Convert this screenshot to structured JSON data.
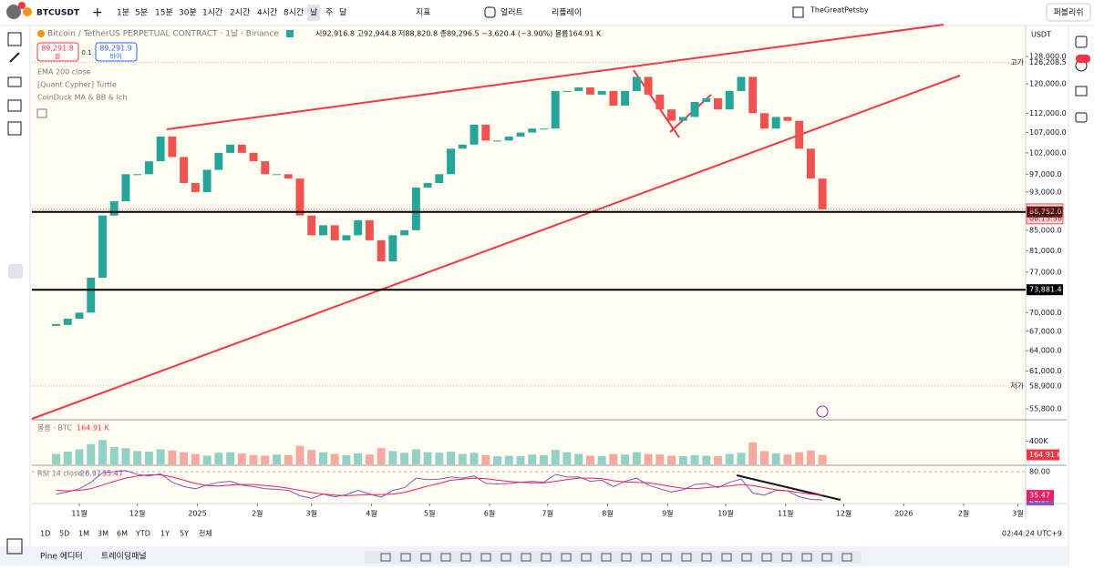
{
  "toolbar": {
    "symbol": "BTCUSDT",
    "intervals": [
      "1분",
      "5분",
      "15분",
      "30분",
      "1시간",
      "2시간",
      "4시간",
      "8시간",
      "날",
      "주",
      "달"
    ],
    "indicators": "지표",
    "alert": "얼러트",
    "replay": "리플레이",
    "user": "TheGreatPetsby",
    "publish": "퍼블리쉬"
  },
  "legend": {
    "symbol_line": "Bitcoin / TetherUS PERPETUAL CONTRACT · 1날 · Binance",
    "ohlc": "시92,916.8 고92,944.8 저88,820.8 종89,296.5 −3,620.4 (−3.90%) 볼륨164.91 K",
    "sell_price": "89,291.8",
    "sell": "셀",
    "spread": "0.1",
    "buy_price": "89,291.9",
    "buy": "바이",
    "indicators": [
      "EMA 200 close",
      "[Quant Cypher] Turtle",
      "CoinDuck MA & BB & Ich"
    ]
  },
  "chart_data": [
    {
      "type": "candlestick",
      "currency": "USDT",
      "log_scale": true,
      "x": [
        -12,
        -6,
        0,
        6,
        12,
        18,
        24,
        30,
        36,
        42,
        48,
        54,
        60,
        66,
        72,
        78,
        84,
        90,
        96,
        102,
        108,
        114,
        120,
        126,
        132,
        138,
        144,
        150,
        156,
        162,
        168,
        174,
        180,
        186,
        192,
        198,
        204,
        210,
        216,
        222,
        228,
        234,
        240,
        246,
        252,
        258,
        264,
        270,
        276,
        282,
        288,
        294,
        300,
        306,
        312,
        318,
        324,
        330,
        336,
        342,
        348,
        354,
        360,
        366,
        372,
        378,
        384
      ],
      "close": [
        68000,
        69000,
        70000,
        76000,
        88000,
        91000,
        97000,
        97000,
        100000,
        106000,
        101000,
        95000,
        93000,
        98000,
        102000,
        104000,
        102000,
        100000,
        97000,
        97000,
        96000,
        88000,
        84000,
        86000,
        83000,
        84000,
        87000,
        83000,
        79000,
        84000,
        85000,
        94000,
        95000,
        97000,
        103000,
        104000,
        109000,
        105000,
        105000,
        106000,
        107000,
        108000,
        108000,
        118000,
        118000,
        119000,
        117000,
        118000,
        114000,
        118000,
        122000,
        117000,
        113000,
        110000,
        111000,
        115000,
        116000,
        113000,
        118000,
        122000,
        112000,
        108000,
        111000,
        110000,
        103000,
        96000,
        89296.5
      ],
      "up_color": "#26a69a",
      "down_color": "#ef5350",
      "xlim": [
        -24.5,
        489
      ],
      "xticks": [
        {
          "value": 0,
          "label": "11월"
        },
        {
          "value": 30,
          "label": "12월"
        },
        {
          "value": 61,
          "label": "2025"
        },
        {
          "value": 92,
          "label": "2월"
        },
        {
          "value": 120,
          "label": "3월"
        },
        {
          "value": 151,
          "label": "4월"
        },
        {
          "value": 181,
          "label": "5월"
        },
        {
          "value": 212,
          "label": "6월"
        },
        {
          "value": 242,
          "label": "7월"
        },
        {
          "value": 273,
          "label": "8월"
        },
        {
          "value": 304,
          "label": "9월"
        },
        {
          "value": 334,
          "label": "10월"
        },
        {
          "value": 365,
          "label": "11월"
        },
        {
          "value": 395,
          "label": "12월"
        },
        {
          "value": 426,
          "label": "2026"
        },
        {
          "value": 457,
          "label": "2월"
        },
        {
          "value": 485,
          "label": "3월"
        }
      ],
      "ylim": [
        54500,
        137700
      ],
      "yticks": [
        {
          "value": 128000,
          "label": "128,000.0"
        },
        {
          "value": 120000,
          "label": "120,000.0"
        },
        {
          "value": 112000,
          "label": "112,000.0"
        },
        {
          "value": 107000,
          "label": "107,000.0"
        },
        {
          "value": 102000,
          "label": "102,000.0"
        },
        {
          "value": 97000,
          "label": "97,000.0"
        },
        {
          "value": 93000,
          "label": "93,000.0"
        },
        {
          "value": 85000,
          "label": "85,000.0"
        },
        {
          "value": 81000,
          "label": "81,000.0"
        },
        {
          "value": 77000,
          "label": "77,000.0"
        },
        {
          "value": 70000,
          "label": "70,000.0"
        },
        {
          "value": 67000,
          "label": "67,000.0"
        },
        {
          "value": 64000,
          "label": "64,000.0"
        },
        {
          "value": 61000,
          "label": "61,000.0"
        },
        {
          "value": 55800,
          "label": "55,800.0"
        }
      ],
      "price_lines": [
        {
          "value": 88752,
          "label": "88,752.0"
        },
        {
          "value": 73881.4,
          "label": "73,881.4"
        }
      ],
      "high": {
        "label": "고가",
        "value": 126208.5,
        "value_label": "126,208.5"
      },
      "low": {
        "label": "저가",
        "value": 58900,
        "value_label": "58,900.0"
      },
      "last": {
        "value": 89296.5,
        "value_label": "89,296.5",
        "countdown": "06:15:36"
      }
    },
    {
      "type": "bar",
      "title": "볼륨 · BTC",
      "last_label": "164.91 K",
      "values": [
        180000,
        220000,
        260000,
        350000,
        420000,
        300000,
        280000,
        230000,
        220000,
        260000,
        240000,
        210000,
        180000,
        150000,
        200000,
        210000,
        190000,
        160000,
        150000,
        170000,
        160000,
        320000,
        250000,
        210000,
        180000,
        160000,
        190000,
        170000,
        280000,
        230000,
        200000,
        260000,
        210000,
        200000,
        220000,
        180000,
        200000,
        160000,
        140000,
        150000,
        140000,
        170000,
        160000,
        250000,
        210000,
        180000,
        150000,
        140000,
        180000,
        170000,
        210000,
        180000,
        170000,
        150000,
        140000,
        160000,
        150000,
        140000,
        180000,
        200000,
        380000,
        230000,
        190000,
        170000,
        210000,
        240000,
        164910
      ],
      "ylim": [
        0,
        740000
      ],
      "yticks": [
        {
          "value": 400000,
          "label": "400K"
        }
      ]
    },
    {
      "type": "line",
      "title": "RSI 14 close",
      "last_labels": [
        "26.97",
        "35.47"
      ],
      "series": [
        {
          "color": "#7e57c2",
          "values": [
            38,
            42,
            48,
            60,
            78,
            80,
            82,
            75,
            72,
            76,
            60,
            52,
            48,
            55,
            60,
            62,
            55,
            52,
            48,
            47,
            45,
            35,
            30,
            38,
            33,
            37,
            45,
            38,
            32,
            45,
            50,
            68,
            65,
            66,
            70,
            68,
            72,
            58,
            57,
            58,
            60,
            62,
            60,
            75,
            70,
            70,
            62,
            64,
            52,
            62,
            68,
            55,
            48,
            42,
            46,
            56,
            58,
            50,
            60,
            66,
            40,
            36,
            45,
            44,
            33,
            28,
            26.97
          ]
        },
        {
          "color": "#e91e63",
          "values": [
            45,
            44,
            45,
            48,
            55,
            62,
            68,
            72,
            74,
            74,
            70,
            64,
            58,
            54,
            53,
            55,
            56,
            56,
            54,
            52,
            49,
            45,
            41,
            38,
            36,
            35,
            36,
            37,
            37,
            38,
            41,
            47,
            53,
            58,
            64,
            66,
            68,
            67,
            64,
            62,
            60,
            59,
            59,
            62,
            65,
            68,
            68,
            67,
            63,
            61,
            60,
            59,
            56,
            52,
            49,
            48,
            50,
            52,
            53,
            56,
            54,
            50,
            46,
            44,
            41,
            38,
            35.47
          ]
        }
      ],
      "ylim": [
        22,
        90.3
      ],
      "yticks": [
        {
          "value": 80,
          "label": "80.00"
        }
      ]
    }
  ],
  "bottom": {
    "ranges": [
      "1D",
      "5D",
      "1M",
      "3M",
      "6M",
      "YTD",
      "1Y",
      "5Y",
      "전체"
    ],
    "time": "02:44:24 UTC+9",
    "tabs": [
      "Pine 에디터",
      "트레이딩패널"
    ]
  }
}
